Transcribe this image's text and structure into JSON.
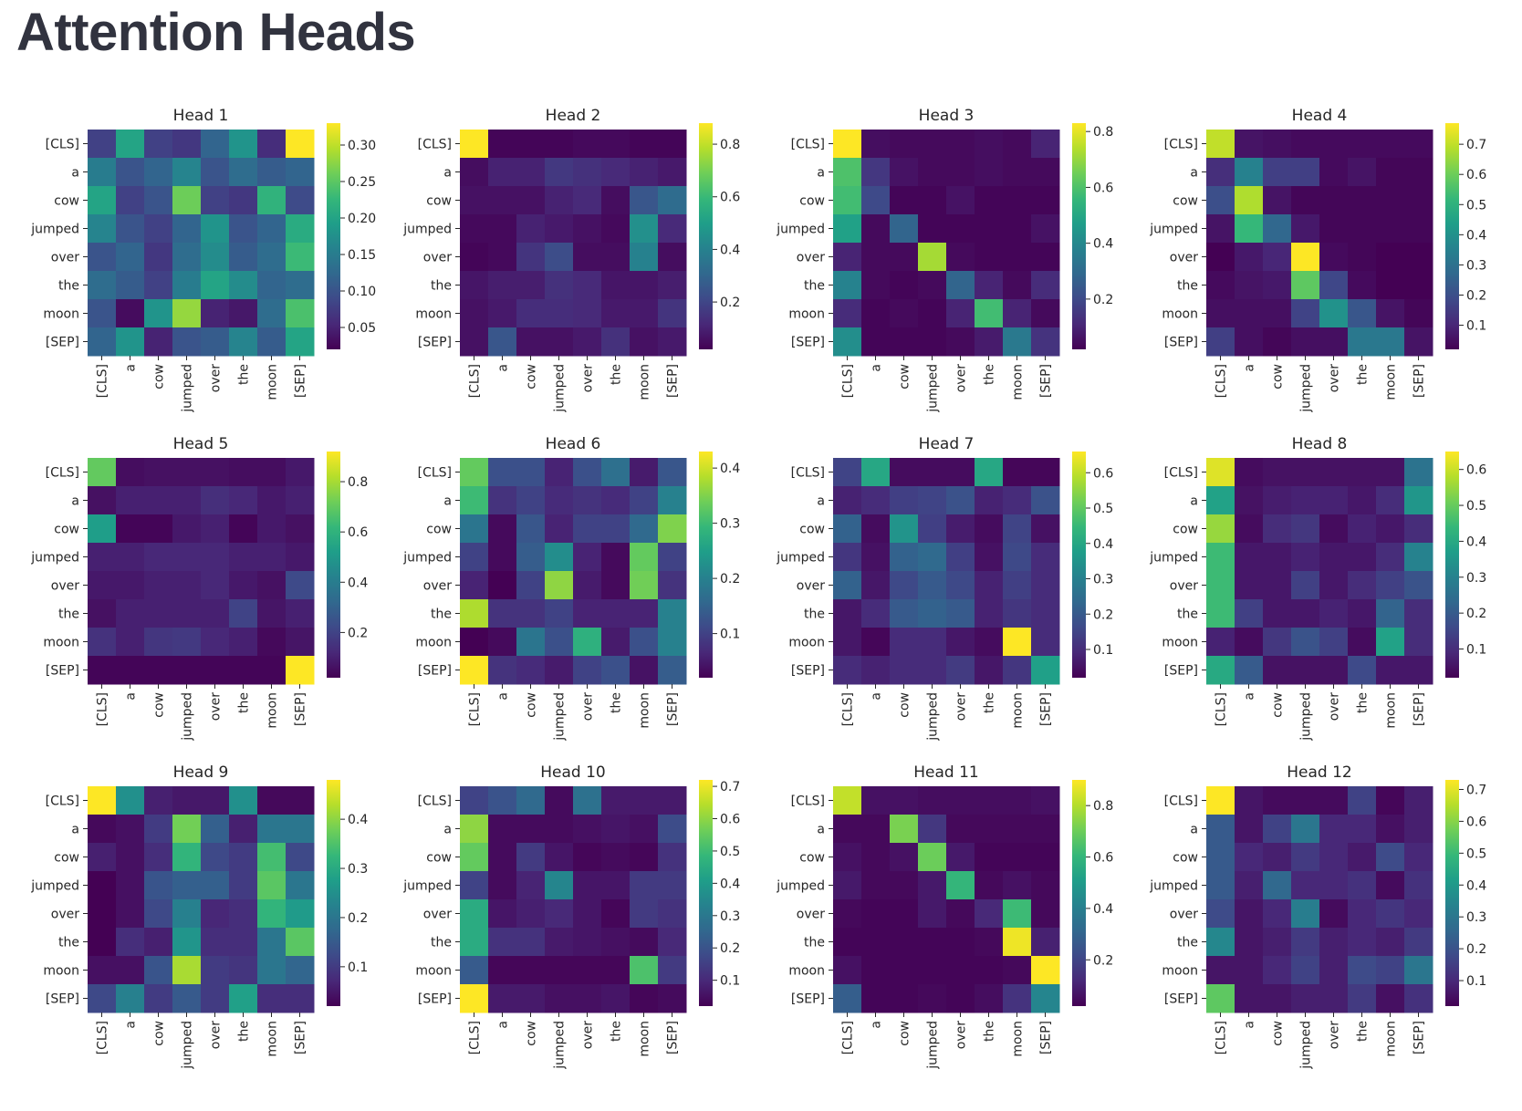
{
  "page": {
    "title": "Attention Heads"
  },
  "chart_data": {
    "type": "heatmap",
    "tokens": [
      "[CLS]",
      "a",
      "cow",
      "jumped",
      "over",
      "the",
      "moon",
      "[SEP]"
    ],
    "colormap": "viridis",
    "heads": [
      {
        "title": "Head 1",
        "vmin": 0.02,
        "vmax": 0.33,
        "colorbar_ticks": [
          0.05,
          0.1,
          0.15,
          0.2,
          0.25,
          0.3
        ],
        "matrix": [
          [
            0.08,
            0.2,
            0.08,
            0.07,
            0.12,
            0.18,
            0.06,
            0.33
          ],
          [
            0.15,
            0.1,
            0.12,
            0.16,
            0.1,
            0.13,
            0.11,
            0.12
          ],
          [
            0.2,
            0.08,
            0.1,
            0.26,
            0.08,
            0.07,
            0.22,
            0.09
          ],
          [
            0.16,
            0.1,
            0.08,
            0.12,
            0.18,
            0.1,
            0.12,
            0.21
          ],
          [
            0.1,
            0.12,
            0.07,
            0.13,
            0.17,
            0.11,
            0.13,
            0.23
          ],
          [
            0.13,
            0.11,
            0.08,
            0.15,
            0.2,
            0.17,
            0.12,
            0.13
          ],
          [
            0.1,
            0.03,
            0.18,
            0.28,
            0.05,
            0.04,
            0.13,
            0.24
          ],
          [
            0.12,
            0.18,
            0.05,
            0.1,
            0.11,
            0.16,
            0.11,
            0.2
          ]
        ]
      },
      {
        "title": "Head 2",
        "vmin": 0.02,
        "vmax": 0.88,
        "colorbar_ticks": [
          0.2,
          0.4,
          0.6,
          0.8
        ],
        "matrix": [
          [
            0.88,
            0.03,
            0.03,
            0.03,
            0.04,
            0.04,
            0.03,
            0.03
          ],
          [
            0.05,
            0.1,
            0.1,
            0.16,
            0.14,
            0.12,
            0.1,
            0.08
          ],
          [
            0.06,
            0.06,
            0.06,
            0.1,
            0.12,
            0.05,
            0.25,
            0.32
          ],
          [
            0.04,
            0.04,
            0.1,
            0.08,
            0.06,
            0.04,
            0.45,
            0.12
          ],
          [
            0.03,
            0.04,
            0.15,
            0.22,
            0.05,
            0.05,
            0.4,
            0.05
          ],
          [
            0.07,
            0.09,
            0.09,
            0.14,
            0.12,
            0.07,
            0.07,
            0.09
          ],
          [
            0.06,
            0.08,
            0.13,
            0.13,
            0.12,
            0.08,
            0.08,
            0.15
          ],
          [
            0.06,
            0.25,
            0.06,
            0.06,
            0.08,
            0.14,
            0.06,
            0.08
          ]
        ]
      },
      {
        "title": "Head 3",
        "vmin": 0.02,
        "vmax": 0.83,
        "colorbar_ticks": [
          0.2,
          0.4,
          0.6,
          0.8
        ],
        "matrix": [
          [
            0.83,
            0.05,
            0.04,
            0.04,
            0.04,
            0.05,
            0.04,
            0.1
          ],
          [
            0.6,
            0.15,
            0.06,
            0.04,
            0.04,
            0.05,
            0.04,
            0.04
          ],
          [
            0.58,
            0.2,
            0.03,
            0.03,
            0.06,
            0.03,
            0.03,
            0.03
          ],
          [
            0.48,
            0.04,
            0.28,
            0.03,
            0.03,
            0.03,
            0.03,
            0.06
          ],
          [
            0.1,
            0.04,
            0.04,
            0.72,
            0.04,
            0.03,
            0.03,
            0.03
          ],
          [
            0.38,
            0.04,
            0.03,
            0.04,
            0.28,
            0.1,
            0.04,
            0.12
          ],
          [
            0.12,
            0.03,
            0.04,
            0.03,
            0.1,
            0.58,
            0.1,
            0.04
          ],
          [
            0.42,
            0.03,
            0.03,
            0.03,
            0.04,
            0.08,
            0.35,
            0.14
          ]
        ]
      },
      {
        "title": "Head 4",
        "vmin": 0.02,
        "vmax": 0.77,
        "colorbar_ticks": [
          0.1,
          0.2,
          0.3,
          0.4,
          0.5,
          0.6,
          0.7
        ],
        "matrix": [
          [
            0.7,
            0.06,
            0.05,
            0.04,
            0.04,
            0.04,
            0.04,
            0.04
          ],
          [
            0.12,
            0.35,
            0.16,
            0.16,
            0.04,
            0.06,
            0.03,
            0.03
          ],
          [
            0.2,
            0.68,
            0.06,
            0.03,
            0.03,
            0.03,
            0.03,
            0.03
          ],
          [
            0.06,
            0.52,
            0.27,
            0.07,
            0.03,
            0.03,
            0.03,
            0.03
          ],
          [
            0.02,
            0.07,
            0.1,
            0.77,
            0.04,
            0.03,
            0.02,
            0.02
          ],
          [
            0.04,
            0.06,
            0.07,
            0.58,
            0.18,
            0.04,
            0.02,
            0.02
          ],
          [
            0.05,
            0.05,
            0.05,
            0.17,
            0.4,
            0.22,
            0.06,
            0.03
          ],
          [
            0.16,
            0.05,
            0.03,
            0.05,
            0.05,
            0.32,
            0.32,
            0.06
          ]
        ]
      },
      {
        "title": "Head 5",
        "vmin": 0.02,
        "vmax": 0.92,
        "colorbar_ticks": [
          0.2,
          0.4,
          0.6,
          0.8
        ],
        "matrix": [
          [
            0.7,
            0.05,
            0.06,
            0.06,
            0.06,
            0.05,
            0.05,
            0.08
          ],
          [
            0.06,
            0.1,
            0.1,
            0.1,
            0.14,
            0.12,
            0.08,
            0.1
          ],
          [
            0.52,
            0.03,
            0.03,
            0.08,
            0.1,
            0.03,
            0.08,
            0.06
          ],
          [
            0.1,
            0.1,
            0.12,
            0.12,
            0.12,
            0.1,
            0.1,
            0.08
          ],
          [
            0.08,
            0.08,
            0.1,
            0.1,
            0.12,
            0.08,
            0.06,
            0.22
          ],
          [
            0.06,
            0.1,
            0.1,
            0.1,
            0.1,
            0.2,
            0.07,
            0.1
          ],
          [
            0.15,
            0.1,
            0.16,
            0.17,
            0.12,
            0.1,
            0.04,
            0.07
          ],
          [
            0.03,
            0.03,
            0.03,
            0.03,
            0.03,
            0.03,
            0.03,
            0.92
          ]
        ]
      },
      {
        "title": "Head 6",
        "vmin": 0.02,
        "vmax": 0.43,
        "colorbar_ticks": [
          0.1,
          0.2,
          0.3,
          0.4
        ],
        "matrix": [
          [
            0.33,
            0.12,
            0.12,
            0.06,
            0.12,
            0.17,
            0.05,
            0.13
          ],
          [
            0.3,
            0.08,
            0.1,
            0.07,
            0.08,
            0.07,
            0.1,
            0.2
          ],
          [
            0.18,
            0.03,
            0.13,
            0.06,
            0.1,
            0.1,
            0.16,
            0.35
          ],
          [
            0.1,
            0.03,
            0.14,
            0.22,
            0.06,
            0.03,
            0.33,
            0.1
          ],
          [
            0.06,
            0.02,
            0.1,
            0.36,
            0.05,
            0.03,
            0.34,
            0.08
          ],
          [
            0.38,
            0.08,
            0.08,
            0.1,
            0.06,
            0.06,
            0.06,
            0.2
          ],
          [
            0.02,
            0.03,
            0.18,
            0.12,
            0.28,
            0.05,
            0.12,
            0.2
          ],
          [
            0.43,
            0.08,
            0.07,
            0.05,
            0.1,
            0.12,
            0.04,
            0.14
          ]
        ]
      },
      {
        "title": "Head 7",
        "vmin": 0.02,
        "vmax": 0.66,
        "colorbar_ticks": [
          0.1,
          0.2,
          0.3,
          0.4,
          0.5,
          0.6
        ],
        "matrix": [
          [
            0.15,
            0.4,
            0.04,
            0.04,
            0.04,
            0.4,
            0.03,
            0.03
          ],
          [
            0.08,
            0.1,
            0.14,
            0.15,
            0.18,
            0.08,
            0.1,
            0.18
          ],
          [
            0.22,
            0.04,
            0.35,
            0.14,
            0.07,
            0.04,
            0.15,
            0.05
          ],
          [
            0.12,
            0.05,
            0.22,
            0.24,
            0.14,
            0.05,
            0.16,
            0.1
          ],
          [
            0.22,
            0.06,
            0.16,
            0.2,
            0.16,
            0.08,
            0.14,
            0.1
          ],
          [
            0.06,
            0.1,
            0.2,
            0.22,
            0.2,
            0.08,
            0.12,
            0.1
          ],
          [
            0.06,
            0.03,
            0.1,
            0.1,
            0.06,
            0.04,
            0.66,
            0.1
          ],
          [
            0.1,
            0.08,
            0.1,
            0.1,
            0.13,
            0.06,
            0.12,
            0.38
          ]
        ]
      },
      {
        "title": "Head 8",
        "vmin": 0.02,
        "vmax": 0.65,
        "colorbar_ticks": [
          0.1,
          0.2,
          0.3,
          0.4,
          0.5,
          0.6
        ],
        "matrix": [
          [
            0.62,
            0.04,
            0.05,
            0.05,
            0.05,
            0.05,
            0.05,
            0.26
          ],
          [
            0.38,
            0.05,
            0.07,
            0.08,
            0.08,
            0.06,
            0.1,
            0.35
          ],
          [
            0.55,
            0.04,
            0.1,
            0.12,
            0.04,
            0.08,
            0.06,
            0.1
          ],
          [
            0.45,
            0.06,
            0.06,
            0.08,
            0.06,
            0.06,
            0.1,
            0.3
          ],
          [
            0.45,
            0.06,
            0.06,
            0.14,
            0.06,
            0.1,
            0.14,
            0.18
          ],
          [
            0.45,
            0.14,
            0.06,
            0.06,
            0.08,
            0.06,
            0.22,
            0.1
          ],
          [
            0.08,
            0.04,
            0.12,
            0.18,
            0.14,
            0.04,
            0.38,
            0.1
          ],
          [
            0.4,
            0.2,
            0.05,
            0.05,
            0.05,
            0.16,
            0.06,
            0.06
          ]
        ]
      },
      {
        "title": "Head 9",
        "vmin": 0.02,
        "vmax": 0.48,
        "colorbar_ticks": [
          0.1,
          0.2,
          0.3,
          0.4
        ],
        "matrix": [
          [
            0.48,
            0.25,
            0.06,
            0.05,
            0.05,
            0.25,
            0.03,
            0.03
          ],
          [
            0.03,
            0.04,
            0.1,
            0.38,
            0.16,
            0.06,
            0.2,
            0.2
          ],
          [
            0.06,
            0.04,
            0.08,
            0.32,
            0.12,
            0.1,
            0.34,
            0.12
          ],
          [
            0.02,
            0.04,
            0.14,
            0.16,
            0.16,
            0.1,
            0.36,
            0.2
          ],
          [
            0.02,
            0.04,
            0.12,
            0.22,
            0.07,
            0.08,
            0.32,
            0.27
          ],
          [
            0.02,
            0.08,
            0.06,
            0.26,
            0.08,
            0.08,
            0.2,
            0.36
          ],
          [
            0.04,
            0.04,
            0.14,
            0.42,
            0.1,
            0.09,
            0.2,
            0.17
          ],
          [
            0.12,
            0.22,
            0.1,
            0.15,
            0.1,
            0.28,
            0.08,
            0.08
          ]
        ]
      },
      {
        "title": "Head 10",
        "vmin": 0.02,
        "vmax": 0.72,
        "colorbar_ticks": [
          0.1,
          0.2,
          0.3,
          0.4,
          0.5,
          0.6,
          0.7
        ],
        "matrix": [
          [
            0.16,
            0.2,
            0.26,
            0.04,
            0.28,
            0.07,
            0.07,
            0.07
          ],
          [
            0.6,
            0.04,
            0.04,
            0.04,
            0.05,
            0.06,
            0.05,
            0.18
          ],
          [
            0.55,
            0.04,
            0.14,
            0.06,
            0.03,
            0.04,
            0.03,
            0.12
          ],
          [
            0.16,
            0.04,
            0.09,
            0.34,
            0.06,
            0.06,
            0.14,
            0.14
          ],
          [
            0.45,
            0.06,
            0.08,
            0.1,
            0.06,
            0.03,
            0.14,
            0.12
          ],
          [
            0.45,
            0.12,
            0.12,
            0.07,
            0.06,
            0.05,
            0.04,
            0.1
          ],
          [
            0.22,
            0.03,
            0.03,
            0.03,
            0.03,
            0.03,
            0.52,
            0.14
          ],
          [
            0.72,
            0.07,
            0.07,
            0.05,
            0.05,
            0.06,
            0.03,
            0.04
          ]
        ]
      },
      {
        "title": "Head 11",
        "vmin": 0.02,
        "vmax": 0.9,
        "colorbar_ticks": [
          0.2,
          0.4,
          0.6,
          0.8
        ],
        "matrix": [
          [
            0.82,
            0.06,
            0.06,
            0.05,
            0.05,
            0.05,
            0.05,
            0.06
          ],
          [
            0.04,
            0.04,
            0.72,
            0.16,
            0.04,
            0.04,
            0.04,
            0.04
          ],
          [
            0.06,
            0.04,
            0.06,
            0.7,
            0.08,
            0.03,
            0.03,
            0.03
          ],
          [
            0.08,
            0.04,
            0.04,
            0.08,
            0.6,
            0.04,
            0.06,
            0.04
          ],
          [
            0.04,
            0.03,
            0.03,
            0.08,
            0.04,
            0.12,
            0.62,
            0.04
          ],
          [
            0.03,
            0.03,
            0.03,
            0.03,
            0.03,
            0.04,
            0.88,
            0.1
          ],
          [
            0.06,
            0.03,
            0.03,
            0.03,
            0.03,
            0.03,
            0.04,
            0.9
          ],
          [
            0.28,
            0.03,
            0.03,
            0.04,
            0.03,
            0.05,
            0.15,
            0.42
          ]
        ]
      },
      {
        "title": "Head 12",
        "vmin": 0.02,
        "vmax": 0.73,
        "colorbar_ticks": [
          0.1,
          0.2,
          0.3,
          0.4,
          0.5,
          0.6,
          0.7
        ],
        "matrix": [
          [
            0.73,
            0.06,
            0.04,
            0.04,
            0.04,
            0.16,
            0.03,
            0.08
          ],
          [
            0.22,
            0.06,
            0.16,
            0.3,
            0.1,
            0.1,
            0.05,
            0.08
          ],
          [
            0.22,
            0.1,
            0.08,
            0.14,
            0.1,
            0.07,
            0.18,
            0.1
          ],
          [
            0.22,
            0.08,
            0.26,
            0.1,
            0.1,
            0.12,
            0.04,
            0.12
          ],
          [
            0.18,
            0.06,
            0.1,
            0.32,
            0.04,
            0.1,
            0.13,
            0.1
          ],
          [
            0.35,
            0.06,
            0.08,
            0.14,
            0.08,
            0.1,
            0.08,
            0.14
          ],
          [
            0.06,
            0.06,
            0.1,
            0.16,
            0.08,
            0.18,
            0.16,
            0.3
          ],
          [
            0.55,
            0.06,
            0.06,
            0.08,
            0.08,
            0.14,
            0.05,
            0.12
          ]
        ]
      }
    ]
  }
}
